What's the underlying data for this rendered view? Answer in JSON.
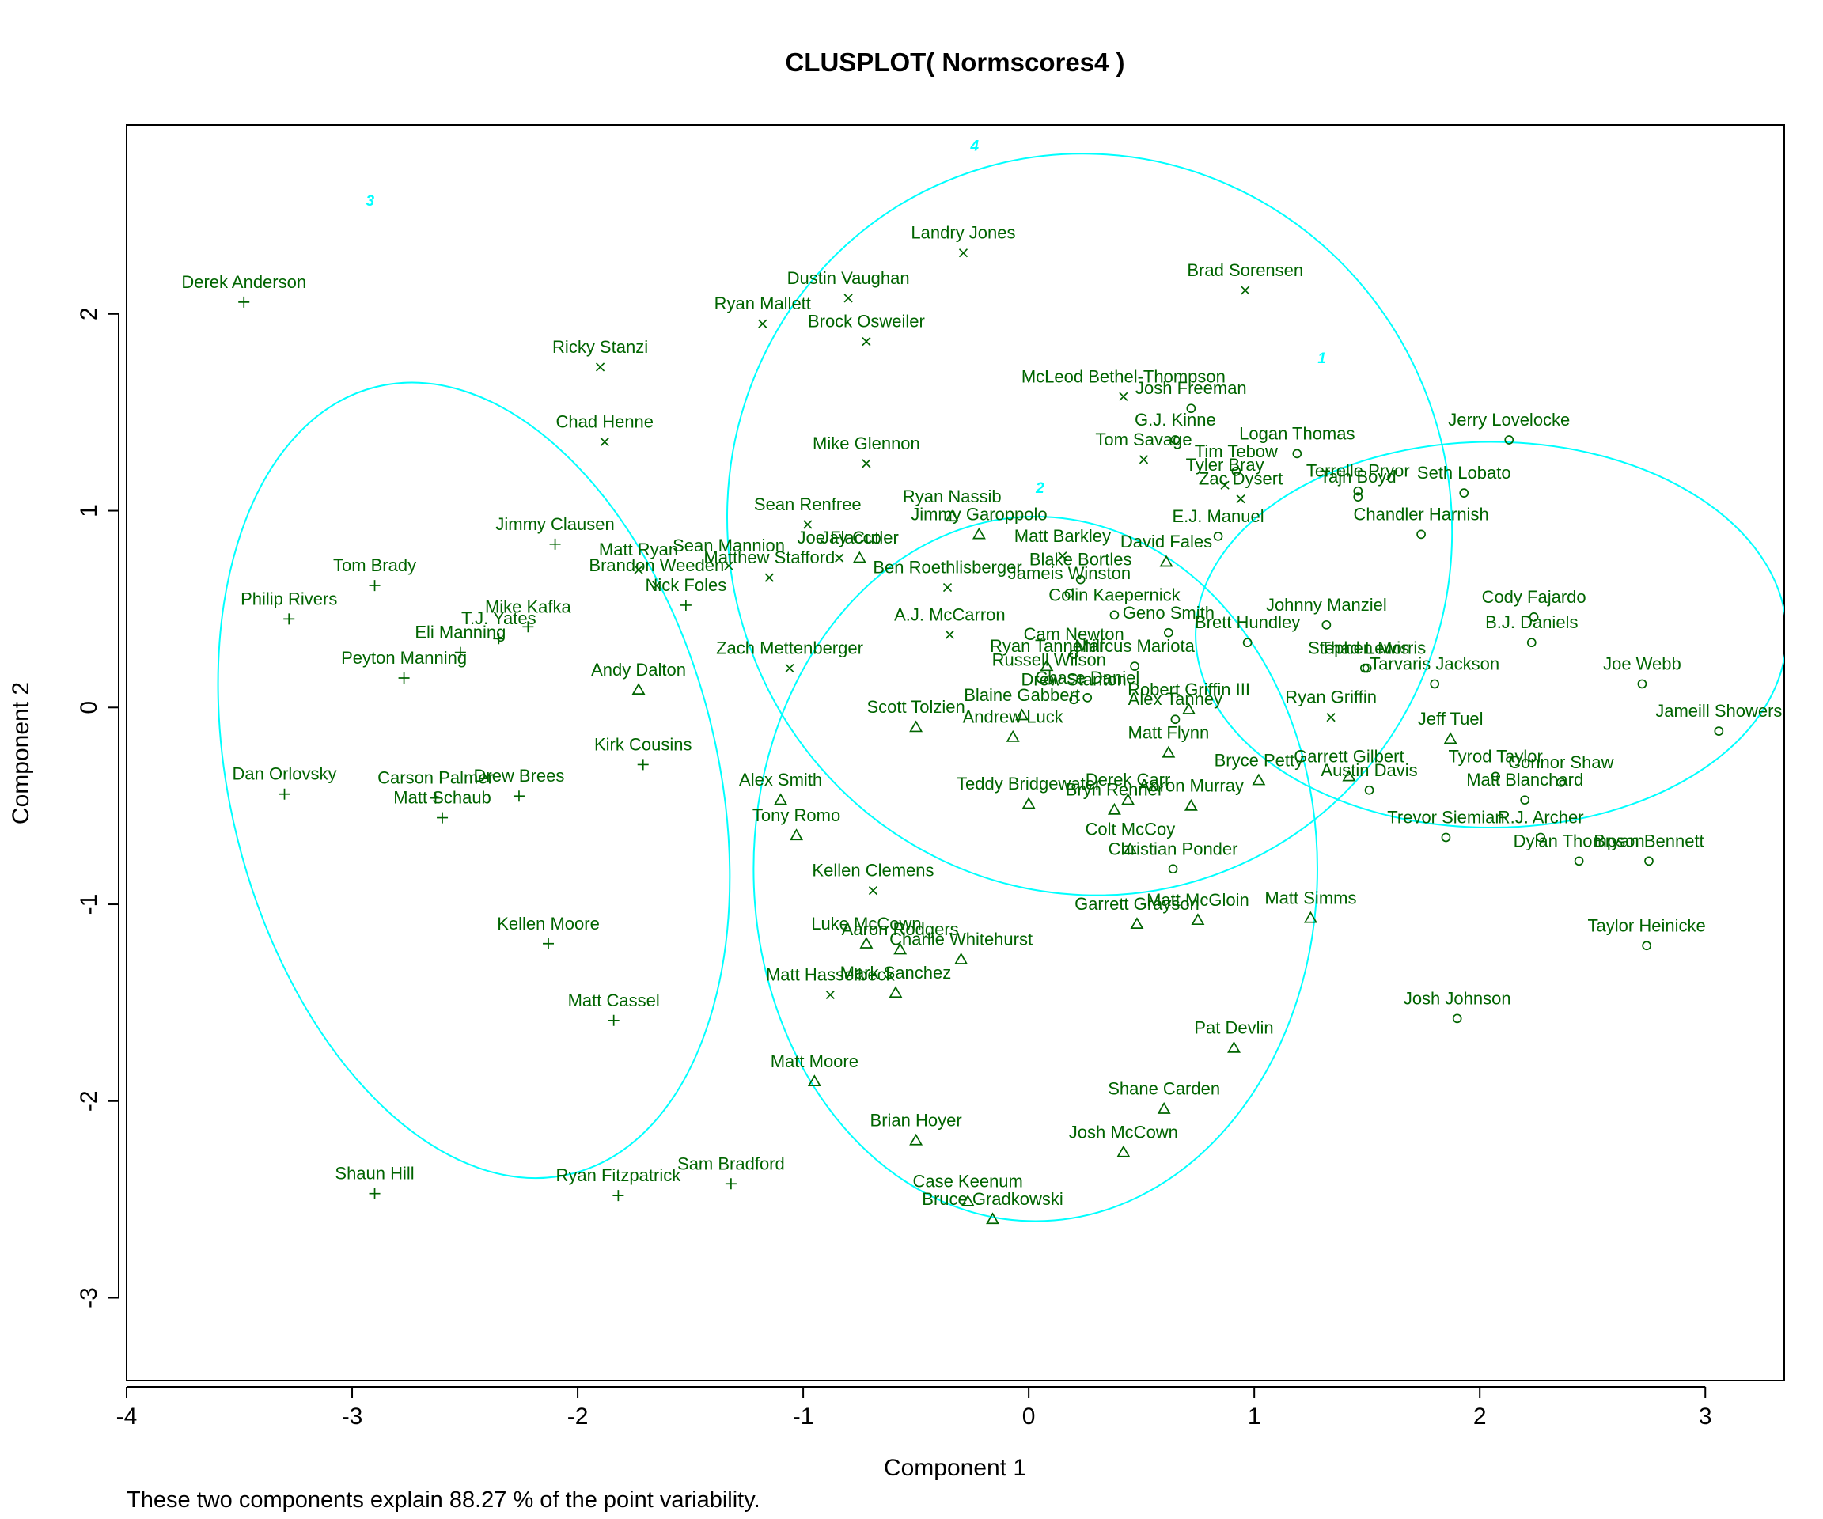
{
  "chart_data": {
    "type": "scatter",
    "title": "CLUSPLOT( Normscores4 )",
    "xlabel": "Component 1",
    "ylabel": "Component 2",
    "note": "These two components explain 88.27 % of the point variability.",
    "xlim": [
      -4,
      3.35
    ],
    "ylim": [
      -3.42,
      2.96
    ],
    "xticks": [
      -4,
      -3,
      -2,
      -1,
      0,
      1,
      2,
      3
    ],
    "yticks": [
      -3,
      -2,
      -1,
      0,
      1,
      2
    ],
    "grid": false,
    "legend": "none",
    "colors": {
      "points": "#006400",
      "ellipses": "#00ffff",
      "axes": "#000000"
    },
    "clusters": [
      {
        "label": "1",
        "center": [
          2.05,
          0.37
        ],
        "rx": 1.31,
        "ry": 1.96,
        "label_pos": [
          1.3,
          1.75
        ]
      },
      {
        "label": "2",
        "center": [
          0.03,
          -0.82
        ],
        "rx": 1.25,
        "ry": 3.58,
        "label_pos": [
          0.05,
          1.09
        ]
      },
      {
        "label": "3",
        "center": [
          -2.46,
          -0.37
        ],
        "rx": 1.08,
        "ry": 4.12,
        "rot": -14,
        "label_pos": [
          -2.92,
          2.55
        ]
      },
      {
        "label": "4",
        "center": [
          0.27,
          0.93
        ],
        "rx": 1.65,
        "ry": 3.67,
        "rot": 70,
        "label_pos": [
          -0.24,
          2.83
        ]
      }
    ],
    "points": [
      {
        "name": "Derek Anderson",
        "x": -3.48,
        "y": 2.06,
        "c": 3
      },
      {
        "name": "Tom Brady",
        "x": -2.9,
        "y": 0.62,
        "c": 3
      },
      {
        "name": "Philip Rivers",
        "x": -3.28,
        "y": 0.45,
        "c": 3
      },
      {
        "name": "Eli Manning",
        "x": -2.52,
        "y": 0.28,
        "c": 3
      },
      {
        "name": "Mike Kafka",
        "x": -2.22,
        "y": 0.41,
        "c": 3
      },
      {
        "name": "Peyton Manning",
        "x": -2.77,
        "y": 0.15,
        "c": 3
      },
      {
        "name": "T.J. Yates",
        "x": -2.35,
        "y": 0.35,
        "c": 3
      },
      {
        "name": "Dan Orlovsky",
        "x": -3.3,
        "y": -0.44,
        "c": 3
      },
      {
        "name": "Carson Palmer",
        "x": -2.63,
        "y": -0.46,
        "c": 3
      },
      {
        "name": "Matt Schaub",
        "x": -2.6,
        "y": -0.56,
        "c": 3
      },
      {
        "name": "Drew Brees",
        "x": -2.26,
        "y": -0.45,
        "c": 3
      },
      {
        "name": "Kellen Moore",
        "x": -2.13,
        "y": -1.2,
        "c": 3
      },
      {
        "name": "Matt Cassel",
        "x": -1.84,
        "y": -1.59,
        "c": 3
      },
      {
        "name": "Shaun Hill",
        "x": -2.9,
        "y": -2.47,
        "c": 3
      },
      {
        "name": "Ryan Fitzpatrick",
        "x": -1.82,
        "y": -2.48,
        "c": 3
      },
      {
        "name": "Sam Bradford",
        "x": -1.32,
        "y": -2.42,
        "c": 3
      },
      {
        "name": "Jimmy Clausen",
        "x": -2.1,
        "y": 0.83,
        "c": 3
      },
      {
        "name": "Kirk Cousins",
        "x": -1.71,
        "y": -0.29,
        "c": 3
      },
      {
        "name": "Nick Foles",
        "x": -1.52,
        "y": 0.52,
        "c": 3
      },
      {
        "name": "Brandon Weeden",
        "x": -1.65,
        "y": 0.62,
        "c": 4
      },
      {
        "name": "Ricky Stanzi",
        "x": -1.9,
        "y": 1.73,
        "c": 4
      },
      {
        "name": "Chad Henne",
        "x": -1.88,
        "y": 1.35,
        "c": 4
      },
      {
        "name": "Matt Ryan",
        "x": -1.73,
        "y": 0.7,
        "c": 4
      },
      {
        "name": "Sean Mannion",
        "x": -1.33,
        "y": 0.72,
        "c": 4
      },
      {
        "name": "Matthew Stafford",
        "x": -1.15,
        "y": 0.66,
        "c": 4
      },
      {
        "name": "Ryan Mallett",
        "x": -1.18,
        "y": 1.95,
        "c": 4
      },
      {
        "name": "Dustin Vaughan",
        "x": -0.8,
        "y": 2.08,
        "c": 4
      },
      {
        "name": "Brock Osweiler",
        "x": -0.72,
        "y": 1.86,
        "c": 4
      },
      {
        "name": "Landry Jones",
        "x": -0.29,
        "y": 2.31,
        "c": 4
      },
      {
        "name": "Brad Sorensen",
        "x": 0.96,
        "y": 2.12,
        "c": 4
      },
      {
        "name": "Mike Glennon",
        "x": -0.72,
        "y": 1.24,
        "c": 4
      },
      {
        "name": "Sean Renfree",
        "x": -0.98,
        "y": 0.93,
        "c": 4
      },
      {
        "name": "Joe Flacco",
        "x": -0.84,
        "y": 0.76,
        "c": 4
      },
      {
        "name": "Jay Cutler",
        "x": -0.75,
        "y": 0.76,
        "c": 2
      },
      {
        "name": "Ryan Nassib",
        "x": -0.34,
        "y": 0.97,
        "c": 2
      },
      {
        "name": "Jimmy Garoppolo",
        "x": -0.22,
        "y": 0.88,
        "c": 2
      },
      {
        "name": "Ben Roethlisberger",
        "x": -0.36,
        "y": 0.61,
        "c": 4
      },
      {
        "name": "A.J. McCarron",
        "x": -0.35,
        "y": 0.37,
        "c": 4
      },
      {
        "name": "Zach Mettenberger",
        "x": -1.06,
        "y": 0.2,
        "c": 4
      },
      {
        "name": "Andy Dalton",
        "x": -1.73,
        "y": 0.09,
        "c": 2
      },
      {
        "name": "McLeod Bethel-Thompson",
        "x": 0.42,
        "y": 1.58,
        "c": 4
      },
      {
        "name": "Josh Freeman",
        "x": 0.72,
        "y": 1.52,
        "c": 1
      },
      {
        "name": "G.J. Kinne",
        "x": 0.65,
        "y": 1.36,
        "c": 1
      },
      {
        "name": "Tom Savage",
        "x": 0.51,
        "y": 1.26,
        "c": 4
      },
      {
        "name": "Logan Thomas",
        "x": 1.19,
        "y": 1.29,
        "c": 1
      },
      {
        "name": "Tim Tebow",
        "x": 0.92,
        "y": 1.2,
        "c": 1
      },
      {
        "name": "Tyler Bray",
        "x": 0.87,
        "y": 1.13,
        "c": 4
      },
      {
        "name": "Zac Dysert",
        "x": 0.94,
        "y": 1.06,
        "c": 4
      },
      {
        "name": "Terrelle Pryor",
        "x": 1.46,
        "y": 1.1,
        "c": 1
      },
      {
        "name": "Tajh Boyd",
        "x": 1.46,
        "y": 1.07,
        "c": 1
      },
      {
        "name": "Seth Lobato",
        "x": 1.93,
        "y": 1.09,
        "c": 1
      },
      {
        "name": "Jerry Lovelocke",
        "x": 2.13,
        "y": 1.36,
        "c": 1
      },
      {
        "name": "Chandler Harnish",
        "x": 1.74,
        "y": 0.88,
        "c": 1
      },
      {
        "name": "E.J. Manuel",
        "x": 0.84,
        "y": 0.87,
        "c": 1
      },
      {
        "name": "Matt Barkley",
        "x": 0.15,
        "y": 0.77,
        "c": 4
      },
      {
        "name": "David Fales",
        "x": 0.61,
        "y": 0.74,
        "c": 2
      },
      {
        "name": "Blake Bortles",
        "x": 0.23,
        "y": 0.65,
        "c": 1
      },
      {
        "name": "Jameis Winston",
        "x": 0.18,
        "y": 0.58,
        "c": 1
      },
      {
        "name": "Colin Kaepernick",
        "x": 0.38,
        "y": 0.47,
        "c": 1
      },
      {
        "name": "Johnny Manziel",
        "x": 1.32,
        "y": 0.42,
        "c": 1
      },
      {
        "name": "Thad Lewis",
        "x": 1.49,
        "y": 0.2,
        "c": 1
      },
      {
        "name": "Geno Smith",
        "x": 0.62,
        "y": 0.38,
        "c": 1
      },
      {
        "name": "Brett Hundley",
        "x": 0.97,
        "y": 0.33,
        "c": 1
      },
      {
        "name": "Cody Fajardo",
        "x": 2.24,
        "y": 0.46,
        "c": 1
      },
      {
        "name": "B.J. Daniels",
        "x": 2.23,
        "y": 0.33,
        "c": 1
      },
      {
        "name": "Tarvaris Jackson",
        "x": 1.8,
        "y": 0.12,
        "c": 1
      },
      {
        "name": "Stephen Morris",
        "x": 1.5,
        "y": 0.2,
        "c": 1
      },
      {
        "name": "Joe Webb",
        "x": 2.72,
        "y": 0.12,
        "c": 1
      },
      {
        "name": "Jameill Showers",
        "x": 3.06,
        "y": -0.12,
        "c": 1
      },
      {
        "name": "Cam Newton",
        "x": 0.2,
        "y": 0.27,
        "c": 1
      },
      {
        "name": "Ryan Tannehill",
        "x": 0.08,
        "y": 0.21,
        "c": 2
      },
      {
        "name": "Marcus Mariota",
        "x": 0.47,
        "y": 0.21,
        "c": 1
      },
      {
        "name": "Chase Daniel",
        "x": 0.26,
        "y": 0.05,
        "c": 1
      },
      {
        "name": "Russell Wilson",
        "x": 0.09,
        "y": 0.14,
        "c": 1
      },
      {
        "name": "Drew Stanton",
        "x": 0.2,
        "y": 0.04,
        "c": 1
      },
      {
        "name": "Blaine Gabbert",
        "x": -0.03,
        "y": -0.04,
        "c": 2
      },
      {
        "name": "Alex Tanney",
        "x": 0.65,
        "y": -0.06,
        "c": 1
      },
      {
        "name": "Robert Griffin III",
        "x": 0.71,
        "y": -0.01,
        "c": 2
      },
      {
        "name": "Ryan Griffin",
        "x": 1.34,
        "y": -0.05,
        "c": 4
      },
      {
        "name": "Jeff Tuel",
        "x": 1.87,
        "y": -0.16,
        "c": 2
      },
      {
        "name": "Scott Tolzien",
        "x": -0.5,
        "y": -0.1,
        "c": 2
      },
      {
        "name": "Andrew Luck",
        "x": -0.07,
        "y": -0.15,
        "c": 2
      },
      {
        "name": "Matt Flynn",
        "x": 0.62,
        "y": -0.23,
        "c": 2
      },
      {
        "name": "Bryce Petty",
        "x": 1.02,
        "y": -0.37,
        "c": 2
      },
      {
        "name": "Garrett Gilbert",
        "x": 1.42,
        "y": -0.35,
        "c": 2
      },
      {
        "name": "Tyrod Taylor",
        "x": 2.07,
        "y": -0.35,
        "c": 1
      },
      {
        "name": "Connor Shaw",
        "x": 2.36,
        "y": -0.38,
        "c": 1
      },
      {
        "name": "Austin Davis",
        "x": 1.51,
        "y": -0.42,
        "c": 1
      },
      {
        "name": "Matt Blanchard",
        "x": 2.2,
        "y": -0.47,
        "c": 1
      },
      {
        "name": "R.J. Archer",
        "x": 2.27,
        "y": -0.66,
        "c": 1
      },
      {
        "name": "Trevor Siemian",
        "x": 1.85,
        "y": -0.66,
        "c": 1
      },
      {
        "name": "Dylan Thompson",
        "x": 2.44,
        "y": -0.78,
        "c": 1
      },
      {
        "name": "Bryan Bennett",
        "x": 2.75,
        "y": -0.78,
        "c": 1
      },
      {
        "name": "Taylor Heinicke",
        "x": 2.74,
        "y": -1.21,
        "c": 1
      },
      {
        "name": "Josh Johnson",
        "x": 1.9,
        "y": -1.58,
        "c": 1
      },
      {
        "name": "Alex Smith",
        "x": -1.1,
        "y": -0.47,
        "c": 2
      },
      {
        "name": "Tony Romo",
        "x": -1.03,
        "y": -0.65,
        "c": 2
      },
      {
        "name": "Teddy Bridgewater",
        "x": 0.0,
        "y": -0.49,
        "c": 2
      },
      {
        "name": "Bryn Renner",
        "x": 0.38,
        "y": -0.52,
        "c": 2
      },
      {
        "name": "Aaron Murray",
        "x": 0.72,
        "y": -0.5,
        "c": 2
      },
      {
        "name": "Derek Carr",
        "x": 0.44,
        "y": -0.47,
        "c": 2
      },
      {
        "name": "Colt McCoy",
        "x": 0.45,
        "y": -0.72,
        "c": 2
      },
      {
        "name": "Christian Ponder",
        "x": 0.64,
        "y": -0.82,
        "c": 1
      },
      {
        "name": "Kellen Clemens",
        "x": -0.69,
        "y": -0.93,
        "c": 4
      },
      {
        "name": "Garrett Grayson",
        "x": 0.48,
        "y": -1.1,
        "c": 2
      },
      {
        "name": "Matt McGloin",
        "x": 0.75,
        "y": -1.08,
        "c": 2
      },
      {
        "name": "Matt Simms",
        "x": 1.25,
        "y": -1.07,
        "c": 2
      },
      {
        "name": "Luke McCown",
        "x": -0.72,
        "y": -1.2,
        "c": 2
      },
      {
        "name": "Aaron Rodgers",
        "x": -0.57,
        "y": -1.23,
        "c": 2
      },
      {
        "name": "Charlie Whitehurst",
        "x": -0.3,
        "y": -1.28,
        "c": 2
      },
      {
        "name": "Matt Hasselbeck",
        "x": -0.88,
        "y": -1.46,
        "c": 4
      },
      {
        "name": "Mark Sanchez",
        "x": -0.59,
        "y": -1.45,
        "c": 2
      },
      {
        "name": "Pat Devlin",
        "x": 0.91,
        "y": -1.73,
        "c": 2
      },
      {
        "name": "Matt Moore",
        "x": -0.95,
        "y": -1.9,
        "c": 2
      },
      {
        "name": "Shane Carden",
        "x": 0.6,
        "y": -2.04,
        "c": 2
      },
      {
        "name": "Brian Hoyer",
        "x": -0.5,
        "y": -2.2,
        "c": 2
      },
      {
        "name": "Josh McCown",
        "x": 0.42,
        "y": -2.26,
        "c": 2
      },
      {
        "name": "Case Keenum",
        "x": -0.27,
        "y": -2.51,
        "c": 2
      },
      {
        "name": "Bruce Gradkowski",
        "x": -0.16,
        "y": -2.6,
        "c": 2
      }
    ]
  }
}
